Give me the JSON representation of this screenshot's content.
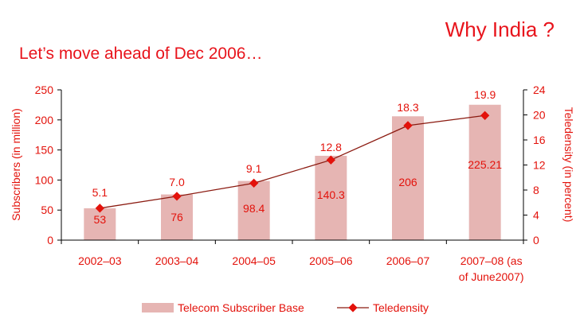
{
  "slide": {
    "title": "Why India ?",
    "subtitle": "Let’s move ahead of Dec 2006…"
  },
  "chart_data": {
    "type": "bar",
    "categories": [
      "2002–03",
      "2003–04",
      "2004–05",
      "2005–06",
      "2006–07",
      "2007–08 (as of June2007)"
    ],
    "category_lines": [
      [
        "2002–03"
      ],
      [
        "2003–04"
      ],
      [
        "2004–05"
      ],
      [
        "2005–06"
      ],
      [
        "2006–07"
      ],
      [
        "2007–08 (as",
        "of June2007)"
      ]
    ],
    "series": [
      {
        "name": "Telecom Subscriber Base",
        "type": "bar",
        "axis": "left",
        "values": [
          53,
          76,
          98.4,
          140.3,
          206,
          225.21
        ],
        "labels": [
          "53",
          "76",
          "98.4",
          "140.3",
          "206",
          "225.21"
        ],
        "color": "#e6b5b3"
      },
      {
        "name": "Teledensity",
        "type": "line",
        "axis": "right",
        "values": [
          5.1,
          7.0,
          9.1,
          12.8,
          18.3,
          19.9
        ],
        "labels": [
          "5.1",
          "7.0",
          "9.1",
          "12.8",
          "18.3",
          "19.9"
        ],
        "color": "#8b1a10",
        "marker_color": "#e3120b"
      }
    ],
    "ylabel": "Subscribers (in million)",
    "ylabel_right": "Teledensity (in percent)",
    "ylim": [
      0,
      250
    ],
    "yticks": [
      0,
      50,
      100,
      150,
      200,
      250
    ],
    "ylim_right": [
      0,
      24
    ],
    "yticks_right": [
      0,
      4,
      8,
      12,
      16,
      20,
      24
    ],
    "grid": false,
    "legend_position": "bottom",
    "colors": {
      "text": "#e3120b",
      "axis": "#000000"
    }
  }
}
